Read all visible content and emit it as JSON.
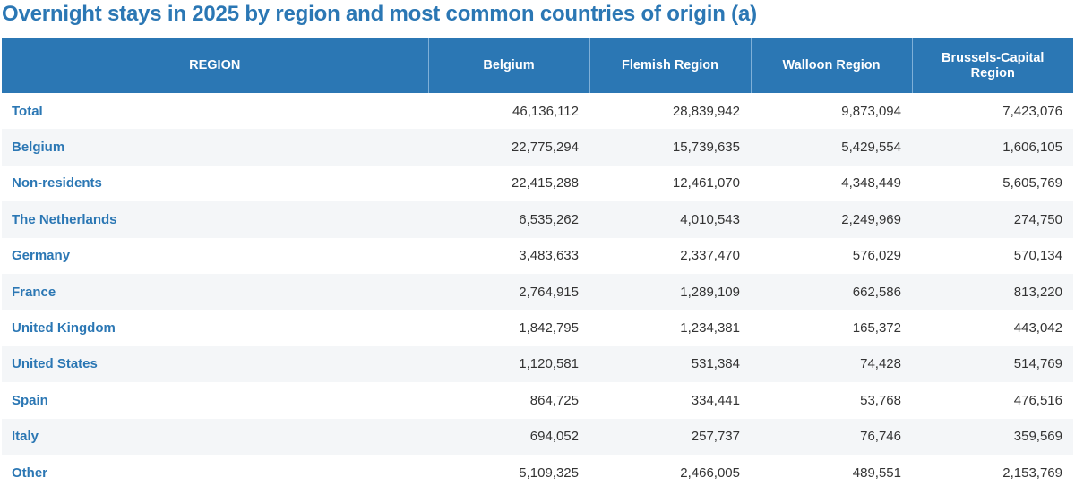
{
  "title": "Overnight stays in 2025 by region and most common countries of origin (a)",
  "colors": {
    "header_bg": "#2b77b4",
    "title": "#2b77b4",
    "row_label": "#2b77b4",
    "stripe": "#f4f6f8"
  },
  "chart_data": {
    "type": "table",
    "title": "Overnight stays in 2025 by region and most common countries of origin (a)",
    "columns": [
      "REGION",
      "Belgium",
      "Flemish Region",
      "Walloon Region",
      "Brussels-Capital Region"
    ],
    "rows": [
      {
        "label": "Total",
        "values": [
          "46,136,112",
          "28,839,942",
          "9,873,094",
          "7,423,076"
        ]
      },
      {
        "label": "Belgium",
        "values": [
          "22,775,294",
          "15,739,635",
          "5,429,554",
          "1,606,105"
        ]
      },
      {
        "label": "Non-residents",
        "values": [
          "22,415,288",
          "12,461,070",
          "4,348,449",
          "5,605,769"
        ]
      },
      {
        "label": "The Netherlands",
        "values": [
          "6,535,262",
          "4,010,543",
          "2,249,969",
          "274,750"
        ]
      },
      {
        "label": "Germany",
        "values": [
          "3,483,633",
          "2,337,470",
          "576,029",
          "570,134"
        ]
      },
      {
        "label": "France",
        "values": [
          "2,764,915",
          "1,289,109",
          "662,586",
          "813,220"
        ]
      },
      {
        "label": "United Kingdom",
        "values": [
          "1,842,795",
          "1,234,381",
          "165,372",
          "443,042"
        ]
      },
      {
        "label": "United States",
        "values": [
          "1,120,581",
          "531,384",
          "74,428",
          "514,769"
        ]
      },
      {
        "label": "Spain",
        "values": [
          "864,725",
          "334,441",
          "53,768",
          "476,516"
        ]
      },
      {
        "label": "Italy",
        "values": [
          "694,052",
          "257,737",
          "76,746",
          "359,569"
        ]
      },
      {
        "label": "Other",
        "values": [
          "5,109,325",
          "2,466,005",
          "489,551",
          "2,153,769"
        ]
      }
    ]
  }
}
